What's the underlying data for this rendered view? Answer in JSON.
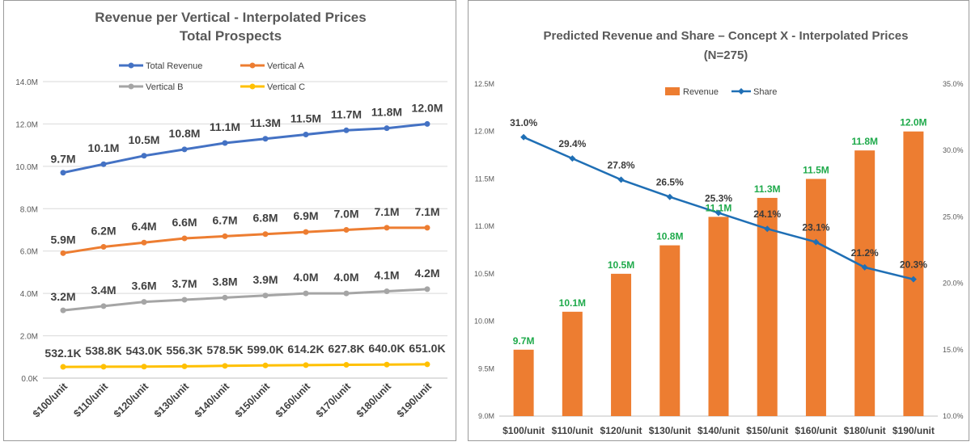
{
  "chart_data": [
    {
      "type": "line",
      "title": "Revenue  per Vertical  - Interpolated Prices",
      "subtitle": "Total Prospects",
      "categories": [
        "$100/unit",
        "$110/unit",
        "$120/unit",
        "$130/unit",
        "$140/unit",
        "$150/unit",
        "$160/unit",
        "$170/unit",
        "$180/unit",
        "$190/unit"
      ],
      "y_ticks": [
        "0.0K",
        "2.0M",
        "4.0M",
        "6.0M",
        "8.0M",
        "10.0M",
        "12.0M",
        "14.0M"
      ],
      "ylim": [
        0,
        14000000
      ],
      "grid": true,
      "legend_position": "top",
      "series": [
        {
          "name": "Total Revenue",
          "color": "#4472c4",
          "values": [
            9700000,
            10100000,
            10500000,
            10800000,
            11100000,
            11300000,
            11500000,
            11700000,
            11800000,
            12000000
          ],
          "labels": [
            "9.7M",
            "10.1M",
            "10.5M",
            "10.8M",
            "11.1M",
            "11.3M",
            "11.5M",
            "11.7M",
            "11.8M",
            "12.0M"
          ]
        },
        {
          "name": "Vertical A",
          "color": "#ed7d31",
          "values": [
            5900000,
            6200000,
            6400000,
            6600000,
            6700000,
            6800000,
            6900000,
            7000000,
            7100000,
            7100000
          ],
          "labels": [
            "5.9M",
            "6.2M",
            "6.4M",
            "6.6M",
            "6.7M",
            "6.8M",
            "6.9M",
            "7.0M",
            "7.1M",
            "7.1M"
          ]
        },
        {
          "name": "Vertical B",
          "color": "#a5a5a5",
          "values": [
            3200000,
            3400000,
            3600000,
            3700000,
            3800000,
            3900000,
            4000000,
            4000000,
            4100000,
            4200000
          ],
          "labels": [
            "3.2M",
            "3.4M",
            "3.6M",
            "3.7M",
            "3.8M",
            "3.9M",
            "4.0M",
            "4.0M",
            "4.1M",
            "4.2M"
          ]
        },
        {
          "name": "Vertical C",
          "color": "#ffc000",
          "values": [
            532100,
            538800,
            543000,
            556300,
            578500,
            599000,
            614200,
            627800,
            640000,
            651000
          ],
          "labels": [
            "532.1K",
            "538.8K",
            "543.0K",
            "556.3K",
            "578.5K",
            "599.0K",
            "614.2K",
            "627.8K",
            "640.0K",
            "651.0K"
          ]
        }
      ]
    },
    {
      "type": "bar+line",
      "title": "Predicted Revenue and Share – Concept X - Interpolated Prices",
      "subtitle": "(N=275)",
      "categories": [
        "$100/unit",
        "$110/unit",
        "$120/unit",
        "$130/unit",
        "$140/unit",
        "$150/unit",
        "$160/unit",
        "$180/unit",
        "$190/unit"
      ],
      "y_ticks": [
        "9.0M",
        "9.5M",
        "10.0M",
        "10.5M",
        "11.0M",
        "11.5M",
        "12.0M",
        "12.5M"
      ],
      "y2_ticks": [
        "10.0%",
        "15.0%",
        "20.0%",
        "25.0%",
        "30.0%",
        "35.0%"
      ],
      "ylim": [
        9000000,
        12500000
      ],
      "y2lim": [
        10,
        35
      ],
      "grid": false,
      "legend_position": "top",
      "bars": {
        "name": "Revenue",
        "color": "#ed7d31",
        "label_color": "#1faa4b",
        "values": [
          9700000,
          10100000,
          10500000,
          10800000,
          11100000,
          11300000,
          11500000,
          11800000,
          12000000
        ],
        "labels": [
          "9.7M",
          "10.1M",
          "10.5M",
          "10.8M",
          "11.1M",
          "11.3M",
          "11.5M",
          "11.8M",
          "12.0M"
        ]
      },
      "line": {
        "name": "Share",
        "color": "#1f6fb5",
        "label_color": "#3b3b3b",
        "values": [
          31.0,
          29.4,
          27.8,
          26.5,
          25.3,
          24.1,
          23.1,
          21.2,
          20.3
        ],
        "labels": [
          "31.0%",
          "29.4%",
          "27.8%",
          "26.5%",
          "25.3%",
          "24.1%",
          "23.1%",
          "21.2%",
          "20.3%"
        ]
      }
    }
  ]
}
